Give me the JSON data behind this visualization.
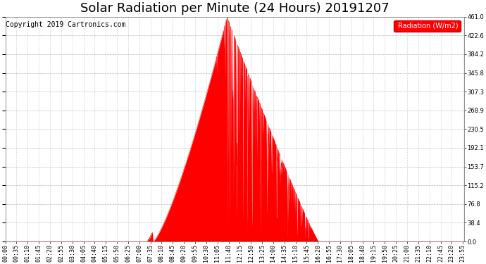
{
  "title": "Solar Radiation per Minute (24 Hours) 20191207",
  "copyright_text": "Copyright 2019 Cartronics.com",
  "legend_label": "Radiation (W/m2)",
  "ylim": [
    0.0,
    461.0
  ],
  "yticks": [
    0.0,
    38.4,
    76.8,
    115.2,
    153.7,
    192.1,
    230.5,
    268.9,
    307.3,
    345.8,
    384.2,
    422.6,
    461.0
  ],
  "fill_color": "#ff0000",
  "line_color": "#ff0000",
  "dashed_line_color": "#ff0000",
  "background_color": "#ffffff",
  "grid_color": "#aaaaaa",
  "legend_bg": "#ff0000",
  "legend_text_color": "#ffffff",
  "title_fontsize": 13,
  "copyright_fontsize": 7,
  "tick_fontsize": 6,
  "total_minutes": 1440,
  "tick_interval": 35,
  "sunrise_minute": 463,
  "sunset_minute": 982,
  "peak_minute": 695,
  "peak_value": 461.0
}
